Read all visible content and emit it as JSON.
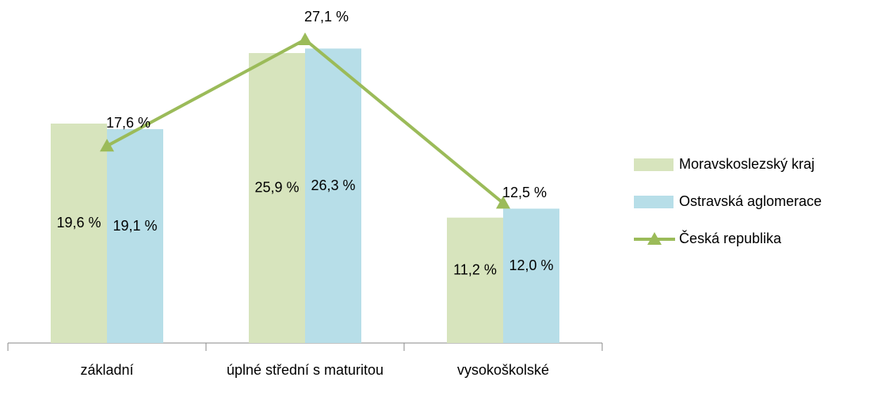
{
  "chart_data": {
    "type": "bar_line",
    "categories": [
      "základní",
      "úplné střední s maturitou",
      "vysokoškolské"
    ],
    "series": [
      {
        "name": "Moravskoslezský kraj",
        "type": "bar",
        "color": "#d7e4bd",
        "values": [
          19.6,
          25.9,
          11.2
        ],
        "value_labels": [
          "19,6 %",
          "25,9 %",
          "11,2 %"
        ]
      },
      {
        "name": "Ostravská aglomerace",
        "type": "bar",
        "color": "#b7dee8",
        "values": [
          19.1,
          26.3,
          12.0
        ],
        "value_labels": [
          "19,1 %",
          "26,3 %",
          "12,0 %"
        ]
      },
      {
        "name": "Česká republika",
        "type": "line",
        "color": "#9bbb59",
        "values": [
          17.6,
          27.1,
          12.5
        ],
        "value_labels": [
          "17,6 %",
          "27,1 %",
          "12,5 %"
        ]
      }
    ],
    "legend": "right"
  }
}
